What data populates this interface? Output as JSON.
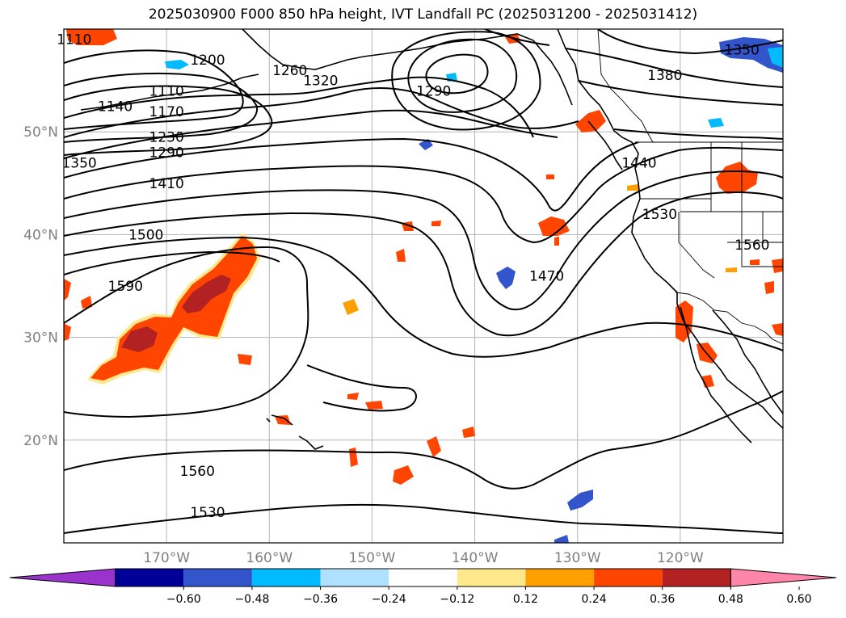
{
  "title": "2025030900 F000 850 hPa height, IVT Landfall PC (2025031200 - 2025031412)",
  "map": {
    "lon_range": [
      -180,
      -110
    ],
    "lat_range": [
      10,
      60
    ],
    "lon_ticks": [
      {
        "value": -170,
        "label": "170°W"
      },
      {
        "value": -160,
        "label": "160°W"
      },
      {
        "value": -150,
        "label": "150°W"
      },
      {
        "value": -140,
        "label": "140°W"
      },
      {
        "value": -130,
        "label": "130°W"
      },
      {
        "value": -120,
        "label": "120°W"
      }
    ],
    "lat_ticks": [
      {
        "value": 20,
        "label": "20°N"
      },
      {
        "value": 30,
        "label": "30°N"
      },
      {
        "value": 40,
        "label": "40°N"
      },
      {
        "value": 50,
        "label": "50°N"
      }
    ],
    "grid": true,
    "contour_color": "#000000"
  },
  "contour_labels": [
    {
      "text": "1110",
      "lon": -179,
      "lat": 59
    },
    {
      "text": "1200",
      "lon": -166,
      "lat": 57
    },
    {
      "text": "1260",
      "lon": -158,
      "lat": 56
    },
    {
      "text": "1110",
      "lon": -170,
      "lat": 54
    },
    {
      "text": "1140",
      "lon": -175,
      "lat": 52.5
    },
    {
      "text": "1170",
      "lon": -170,
      "lat": 52
    },
    {
      "text": "1230",
      "lon": -170,
      "lat": 49.5
    },
    {
      "text": "1290",
      "lon": -170,
      "lat": 48
    },
    {
      "text": "1320",
      "lon": -155,
      "lat": 55
    },
    {
      "text": "1290",
      "lon": -144,
      "lat": 54
    },
    {
      "text": "1350",
      "lon": -114,
      "lat": 58
    },
    {
      "text": "1380",
      "lon": -121.5,
      "lat": 55.5
    },
    {
      "text": "1350",
      "lon": -178.5,
      "lat": 47
    },
    {
      "text": "1410",
      "lon": -170,
      "lat": 45
    },
    {
      "text": "1440",
      "lon": -124,
      "lat": 47
    },
    {
      "text": "1500",
      "lon": -172,
      "lat": 40
    },
    {
      "text": "1530",
      "lon": -122,
      "lat": 42
    },
    {
      "text": "1560",
      "lon": -113,
      "lat": 39
    },
    {
      "text": "1590",
      "lon": -174,
      "lat": 35
    },
    {
      "text": "1470",
      "lon": -133,
      "lat": 36
    },
    {
      "text": "1560",
      "lon": -167,
      "lat": 17
    },
    {
      "text": "1530",
      "lon": -166,
      "lat": 13
    }
  ],
  "colorbar": {
    "ticks": [
      "−0.60",
      "−0.48",
      "−0.36",
      "−0.24",
      "−0.12",
      "0.12",
      "0.24",
      "0.36",
      "0.48",
      "0.60"
    ],
    "bins": [
      "#9933cc",
      "#000099",
      "#3355cc",
      "#00bbff",
      "#aee0ff",
      "#ffffff",
      "#ffe88c",
      "#ffa000",
      "#ff4500",
      "#b22222",
      "#ff85aa"
    ]
  },
  "fill_colors": {
    "orange": "#ffa000",
    "red_orange": "#ff4500",
    "dark_red": "#b22222",
    "yellow": "#ffe88c",
    "light_blue": "#00bbff",
    "blue": "#3355cc"
  }
}
